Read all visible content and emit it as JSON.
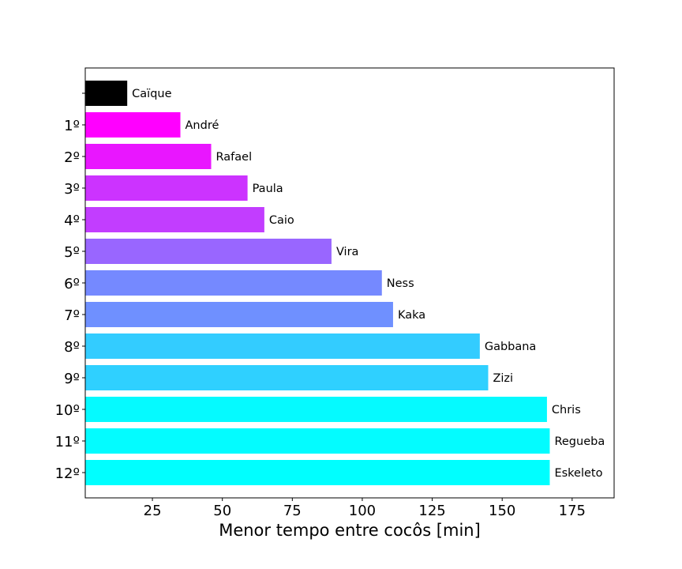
{
  "chart_data": {
    "type": "bar",
    "orientation": "horizontal",
    "title": "",
    "xlabel": "Menor tempo entre cocôs [min]",
    "ylabel": "",
    "xlim": [
      1,
      190
    ],
    "xticks": [
      25,
      50,
      75,
      100,
      125,
      150,
      175
    ],
    "grid": false,
    "legend": "none",
    "bars": [
      {
        "rank": "",
        "name": "Caïque",
        "value": 16,
        "color": "#000000"
      },
      {
        "rank": "1º",
        "name": "André",
        "value": 35,
        "color": "#ff00ff"
      },
      {
        "rank": "2º",
        "name": "Rafael",
        "value": 46,
        "color": "#e916ff"
      },
      {
        "rank": "3º",
        "name": "Paula",
        "value": 59,
        "color": "#cc33ff"
      },
      {
        "rank": "4º",
        "name": "Caio",
        "value": 65,
        "color": "#c23dff"
      },
      {
        "rank": "5º",
        "name": "Vira",
        "value": 89,
        "color": "#9966ff"
      },
      {
        "rank": "6º",
        "name": "Ness",
        "value": 107,
        "color": "#7589ff"
      },
      {
        "rank": "7º",
        "name": "Kaka",
        "value": 111,
        "color": "#6f90ff"
      },
      {
        "rank": "8º",
        "name": "Gabbana",
        "value": 142,
        "color": "#33ccff"
      },
      {
        "rank": "9º",
        "name": "Zizi",
        "value": 145,
        "color": "#2fd0ff"
      },
      {
        "rank": "10º",
        "name": "Chris",
        "value": 166,
        "color": "#05faff"
      },
      {
        "rank": "11º",
        "name": "Regueba",
        "value": 167,
        "color": "#03fcff"
      },
      {
        "rank": "12º",
        "name": "Eskeleto",
        "value": 167,
        "color": "#00ffff"
      }
    ]
  }
}
